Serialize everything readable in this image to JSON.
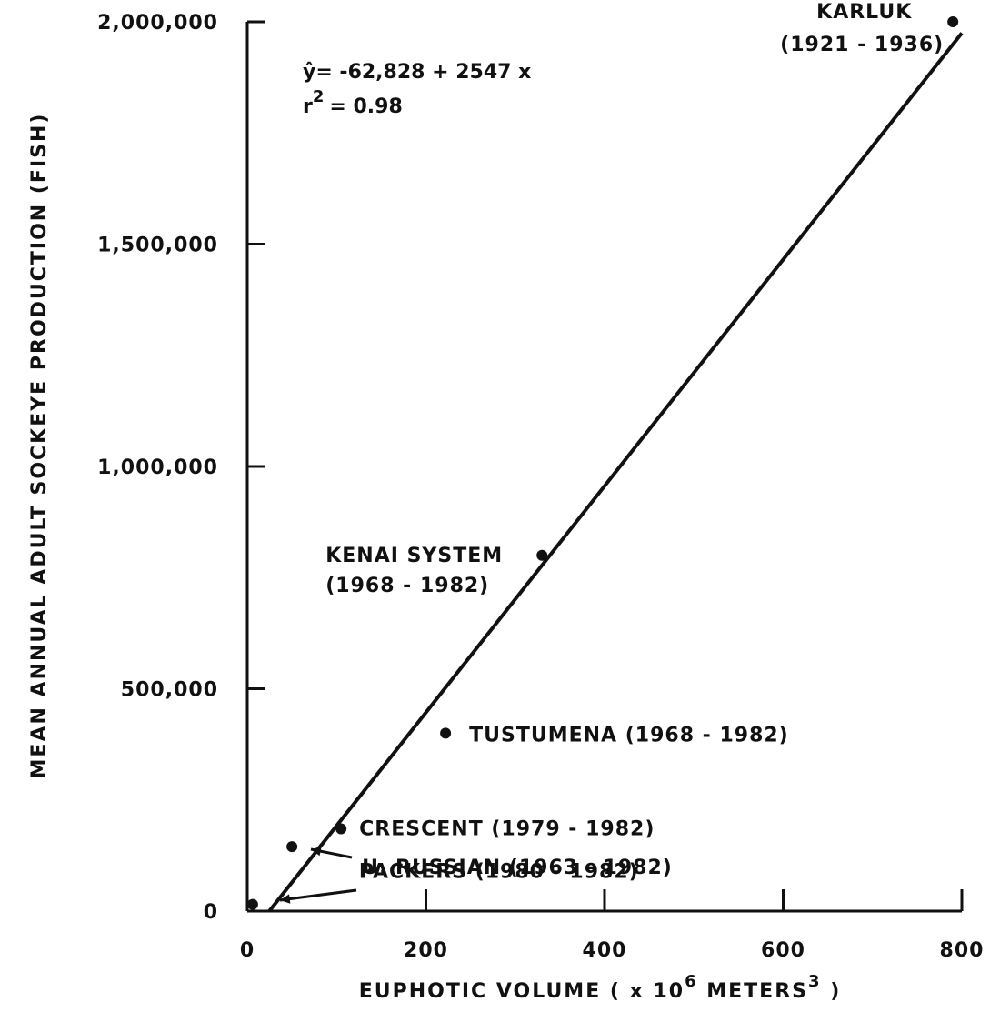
{
  "chart_data": {
    "type": "scatter",
    "xlabel": "EUPHOTIC  VOLUME  ( x 10",
    "xlabel_exp": "6",
    "xlabel_suffix": " METERS",
    "xlabel_exp2": "3",
    "xlabel_close": " )",
    "ylabel": "MEAN ANNUAL ADULT SOCKEYE PRODUCTION (FISH)",
    "xlim": [
      0,
      800
    ],
    "ylim": [
      0,
      2000000
    ],
    "x_ticks": [
      {
        "value": 0,
        "label": "0"
      },
      {
        "value": 200,
        "label": "200"
      },
      {
        "value": 400,
        "label": "400"
      },
      {
        "value": 600,
        "label": "600"
      },
      {
        "value": 800,
        "label": "800"
      }
    ],
    "y_ticks": [
      {
        "value": 0,
        "label": "0"
      },
      {
        "value": 500000,
        "label": "500,000"
      },
      {
        "value": 1000000,
        "label": "1,000,000"
      },
      {
        "value": 1500000,
        "label": "1,500,000"
      },
      {
        "value": 2000000,
        "label": "2,000,000"
      }
    ],
    "points": [
      {
        "name": "KARLUK",
        "years": "(1921 - 1936)",
        "x": 790,
        "y": 2000000
      },
      {
        "name": "KENAI  SYSTEM",
        "years": "(1968 - 1982)",
        "x": 330,
        "y": 800000
      },
      {
        "name": "TUSTUMENA  (1968 - 1982)",
        "x": 222,
        "y": 400000
      },
      {
        "name": "CRESCENT  (1979 - 1982)",
        "x": 105,
        "y": 185000
      },
      {
        "name": "U. RUSSIAN  (1963 - 1982)",
        "x": 50,
        "y": 145000
      },
      {
        "name": "PACKERS  (1980 - 1982)",
        "x": 6,
        "y": 15000
      }
    ],
    "regression": {
      "intercept": -62828,
      "slope": 2547,
      "equation_lhs": "ŷ",
      "equation_rhs": "= -62,828 + 2547 x",
      "r2_label": "r",
      "r2_exp": "2",
      "r2_value": "=  0.98"
    }
  }
}
